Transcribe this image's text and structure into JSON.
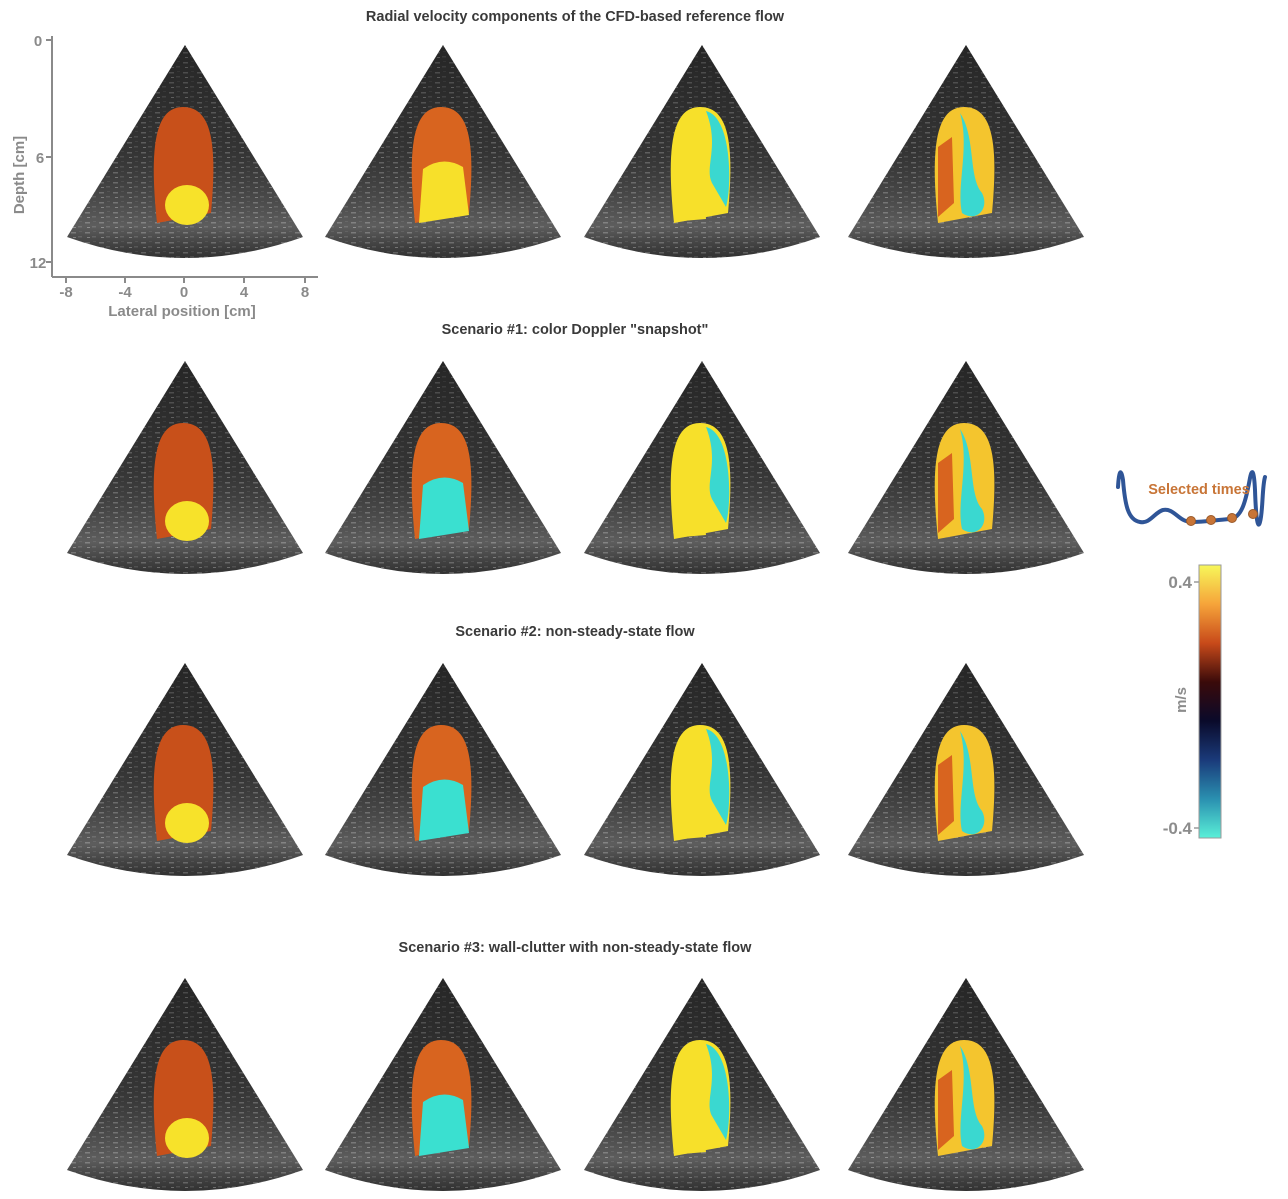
{
  "rows": [
    {
      "title": "Radial velocity components of the CFD-based reference flow"
    },
    {
      "title": "Scenario #1: color Doppler \"snapshot\""
    },
    {
      "title": "Scenario #2: non-steady-state flow"
    },
    {
      "title": "Scenario #3: wall-clutter with non-steady-state flow"
    }
  ],
  "axes": {
    "ylabel": "Depth [cm]",
    "xlabel": "Lateral position [cm]",
    "yticks": [
      "0",
      "6",
      "12"
    ],
    "xticks": [
      "-8",
      "-4",
      "0",
      "4",
      "8"
    ]
  },
  "inset": {
    "label": "Selected times",
    "line_color": "#2f5597",
    "marker_color": "#c87537"
  },
  "colorbar": {
    "unit": "m/s",
    "max_label": "0.4",
    "min_label": "-0.4",
    "colors": [
      "#f7f75a",
      "#f6a43a",
      "#c84a1a",
      "#3a0a0a",
      "#0a0a2a",
      "#1a3a7a",
      "#2a90b0",
      "#5af0d8"
    ]
  }
}
